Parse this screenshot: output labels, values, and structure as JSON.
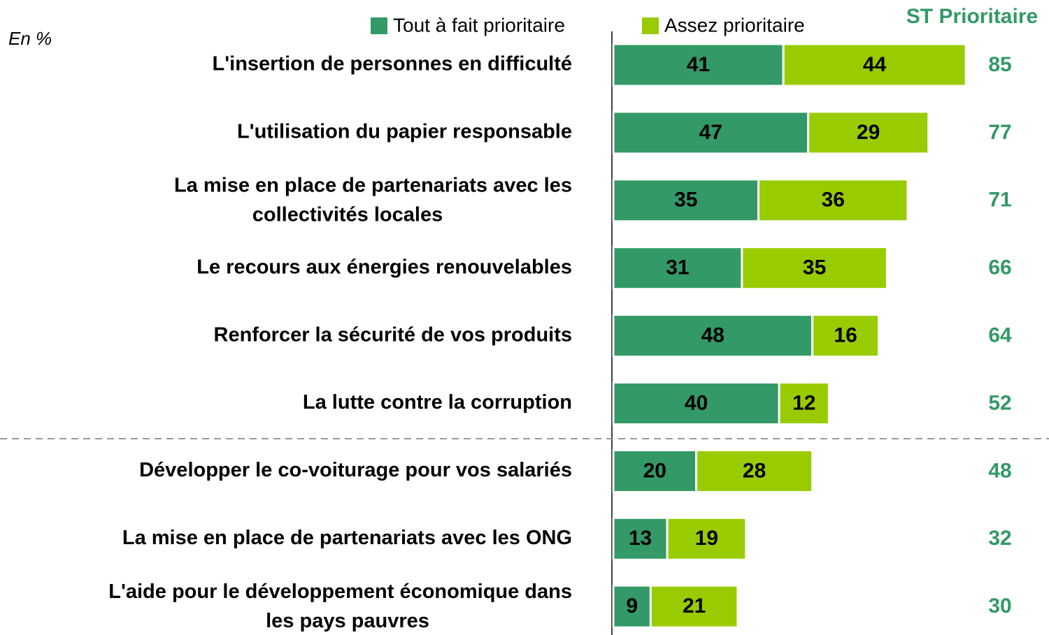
{
  "chart_data": {
    "type": "stacked-bar-horizontal",
    "unit_label": "En %",
    "categories": [
      [
        "L'insertion de personnes en difficulté"
      ],
      [
        "L'utilisation du papier responsable"
      ],
      [
        "La mise en place de partenariats avec les",
        "collectivités locales"
      ],
      [
        "Le recours aux énergies renouvelables"
      ],
      [
        "Renforcer la sécurité de vos produits"
      ],
      [
        "La lutte contre la corruption"
      ],
      [
        "Développer le co-voiturage pour vos salariés"
      ],
      [
        "La mise en place de partenariats avec les ONG"
      ],
      [
        "L'aide pour le développement économique dans",
        "les pays pauvres"
      ]
    ],
    "series": [
      {
        "name": "Tout à fait prioritaire",
        "color": "#339966",
        "values": [
          41,
          47,
          35,
          31,
          48,
          40,
          20,
          13,
          9
        ]
      },
      {
        "name": "Assez prioritaire",
        "color": "#99cc00",
        "values": [
          44,
          29,
          36,
          35,
          16,
          12,
          28,
          19,
          21
        ]
      }
    ],
    "totals": {
      "name": "ST Prioritaire",
      "color": "#339966",
      "values": [
        85,
        77,
        71,
        66,
        64,
        52,
        48,
        32,
        30
      ]
    },
    "xlim": [
      0,
      100
    ]
  }
}
